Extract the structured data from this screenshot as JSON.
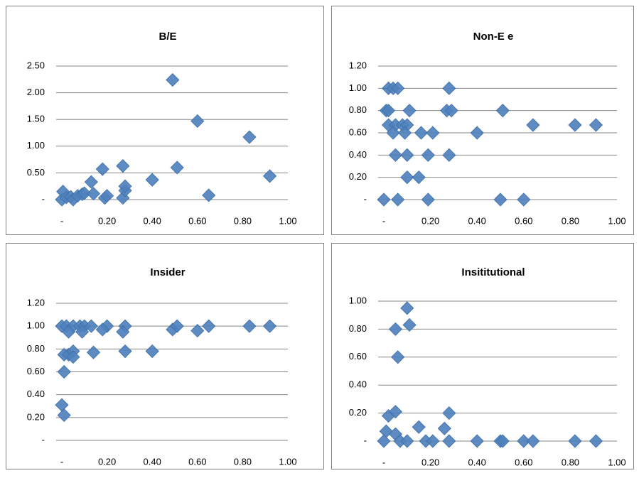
{
  "chart_data": [
    {
      "type": "scatter",
      "title": "B/E",
      "color": "#4f81bd",
      "x": [
        0,
        0.005,
        0.02,
        0.04,
        0.05,
        0.07,
        0.09,
        0.1,
        0.13,
        0.14,
        0.18,
        0.19,
        0.2,
        0.27,
        0.27,
        0.28,
        0.28,
        0.4,
        0.49,
        0.51,
        0.6,
        0.65,
        0.83,
        0.92
      ],
      "values": [
        0,
        0.15,
        0.04,
        0.05,
        0.0,
        0.07,
        0.1,
        0.12,
        0.33,
        0.11,
        0.57,
        0.03,
        0.07,
        0.63,
        0.03,
        0.17,
        0.25,
        0.37,
        2.24,
        0.6,
        1.47,
        0.08,
        1.17,
        0.44
      ],
      "xlim": [
        0,
        1
      ],
      "ylim": [
        0,
        2.5
      ],
      "xticks": [
        {
          "value": 0,
          "label": "-"
        },
        {
          "value": 0.2,
          "label": "0.20"
        },
        {
          "value": 0.4,
          "label": "0.40"
        },
        {
          "value": 0.6,
          "label": "0.60"
        },
        {
          "value": 0.8,
          "label": "0.80"
        },
        {
          "value": 1,
          "label": "1.00"
        }
      ],
      "yticks": [
        {
          "value": 0,
          "label": "-"
        },
        {
          "value": 0.5,
          "label": "0.50"
        },
        {
          "value": 1,
          "label": "1.00"
        },
        {
          "value": 1.5,
          "label": "1.50"
        },
        {
          "value": 2,
          "label": "2.00"
        },
        {
          "value": 2.5,
          "label": "2.50"
        }
      ],
      "grid": true
    },
    {
      "type": "scatter",
      "title": "Non-E e",
      "color": "#4f81bd",
      "x": [
        0.02,
        0.04,
        0.06,
        0.01,
        0.02,
        0.02,
        0.05,
        0.04,
        0.08,
        0.1,
        0.11,
        0.09,
        0.16,
        0.21,
        0.27,
        0.29,
        0.28,
        0.4,
        0.51,
        0.64,
        0.82,
        0.91,
        0.05,
        0.1,
        0.19,
        0.28,
        0.1,
        0.15,
        0,
        0.06,
        0.19,
        0.5,
        0.6
      ],
      "values": [
        1,
        1,
        1,
        0.8,
        0.8,
        0.67,
        0.67,
        0.6,
        0.67,
        0.67,
        0.8,
        0.6,
        0.6,
        0.6,
        0.8,
        0.8,
        1,
        0.6,
        0.8,
        0.67,
        0.67,
        0.67,
        0.4,
        0.4,
        0.4,
        0.4,
        0.2,
        0.2,
        0,
        0,
        0,
        0,
        0
      ],
      "xlim": [
        0,
        1
      ],
      "ylim": [
        0,
        1.2
      ],
      "xticks": [
        {
          "value": 0,
          "label": "-"
        },
        {
          "value": 0.2,
          "label": "0.20"
        },
        {
          "value": 0.4,
          "label": "0.40"
        },
        {
          "value": 0.6,
          "label": "0.60"
        },
        {
          "value": 0.8,
          "label": "0.80"
        },
        {
          "value": 1,
          "label": "1.00"
        }
      ],
      "yticks": [
        {
          "value": 0,
          "label": "-"
        },
        {
          "value": 0.2,
          "label": "0.20"
        },
        {
          "value": 0.4,
          "label": "0.40"
        },
        {
          "value": 0.6,
          "label": "0.60"
        },
        {
          "value": 0.8,
          "label": "0.80"
        },
        {
          "value": 1,
          "label": "1.00"
        },
        {
          "value": 1.2,
          "label": "1.20"
        }
      ],
      "grid": true
    },
    {
      "type": "scatter",
      "title": "Insider",
      "color": "#4f81bd",
      "x": [
        0,
        0.02,
        0.05,
        0.08,
        0.1,
        0.13,
        0.2,
        0.28,
        0.03,
        0.09,
        0.18,
        0.27,
        0.01,
        0.03,
        0.05,
        0.05,
        0.14,
        0.28,
        0.4,
        0.49,
        0.51,
        0.6,
        0.65,
        0.83,
        0.92,
        0.01,
        0,
        0.01
      ],
      "values": [
        1,
        1,
        1,
        1,
        1,
        1,
        1,
        1,
        0.95,
        0.95,
        0.97,
        0.95,
        0.75,
        0.75,
        0.78,
        0.73,
        0.77,
        0.78,
        0.78,
        0.97,
        1,
        0.96,
        1,
        1,
        1,
        0.6,
        0.31,
        0.22
      ],
      "xlim": [
        0,
        1
      ],
      "ylim": [
        0,
        1.2
      ],
      "xticks": [
        {
          "value": 0,
          "label": "-"
        },
        {
          "value": 0.2,
          "label": "0.20"
        },
        {
          "value": 0.4,
          "label": "0.40"
        },
        {
          "value": 0.6,
          "label": "0.60"
        },
        {
          "value": 0.8,
          "label": "0.80"
        },
        {
          "value": 1,
          "label": "1.00"
        }
      ],
      "yticks": [
        {
          "value": 0,
          "label": "-"
        },
        {
          "value": 0.2,
          "label": "0.20"
        },
        {
          "value": 0.4,
          "label": "0.40"
        },
        {
          "value": 0.6,
          "label": "0.60"
        },
        {
          "value": 0.8,
          "label": "0.80"
        },
        {
          "value": 1,
          "label": "1.00"
        },
        {
          "value": 1.2,
          "label": "1.20"
        }
      ],
      "grid": true
    },
    {
      "type": "scatter",
      "title": "Insititutional",
      "color": "#4f81bd",
      "x": [
        0.01,
        0,
        0.02,
        0.05,
        0.05,
        0.06,
        0.1,
        0.11,
        0.05,
        0.07,
        0.1,
        0.15,
        0.18,
        0.21,
        0.26,
        0.28,
        0.28,
        0.4,
        0.5,
        0.51,
        0.6,
        0.64,
        0.82,
        0.91
      ],
      "values": [
        0.07,
        0,
        0.18,
        0.21,
        0.8,
        0.6,
        0.95,
        0.83,
        0.05,
        0,
        0,
        0.1,
        0,
        0,
        0.09,
        0,
        0.2,
        0,
        0,
        0,
        0,
        0,
        0,
        0
      ],
      "xlim": [
        0,
        1
      ],
      "ylim": [
        0,
        1
      ],
      "xticks": [
        {
          "value": 0,
          "label": "-"
        },
        {
          "value": 0.2,
          "label": "0.20"
        },
        {
          "value": 0.4,
          "label": "0.40"
        },
        {
          "value": 0.6,
          "label": "0.60"
        },
        {
          "value": 0.8,
          "label": "0.80"
        },
        {
          "value": 1,
          "label": "1.00"
        }
      ],
      "yticks": [
        {
          "value": 0,
          "label": "-"
        },
        {
          "value": 0.2,
          "label": "0.20"
        },
        {
          "value": 0.4,
          "label": "0.40"
        },
        {
          "value": 0.6,
          "label": "0.60"
        },
        {
          "value": 0.8,
          "label": "0.80"
        },
        {
          "value": 1,
          "label": "1.00"
        }
      ],
      "grid": true
    }
  ]
}
